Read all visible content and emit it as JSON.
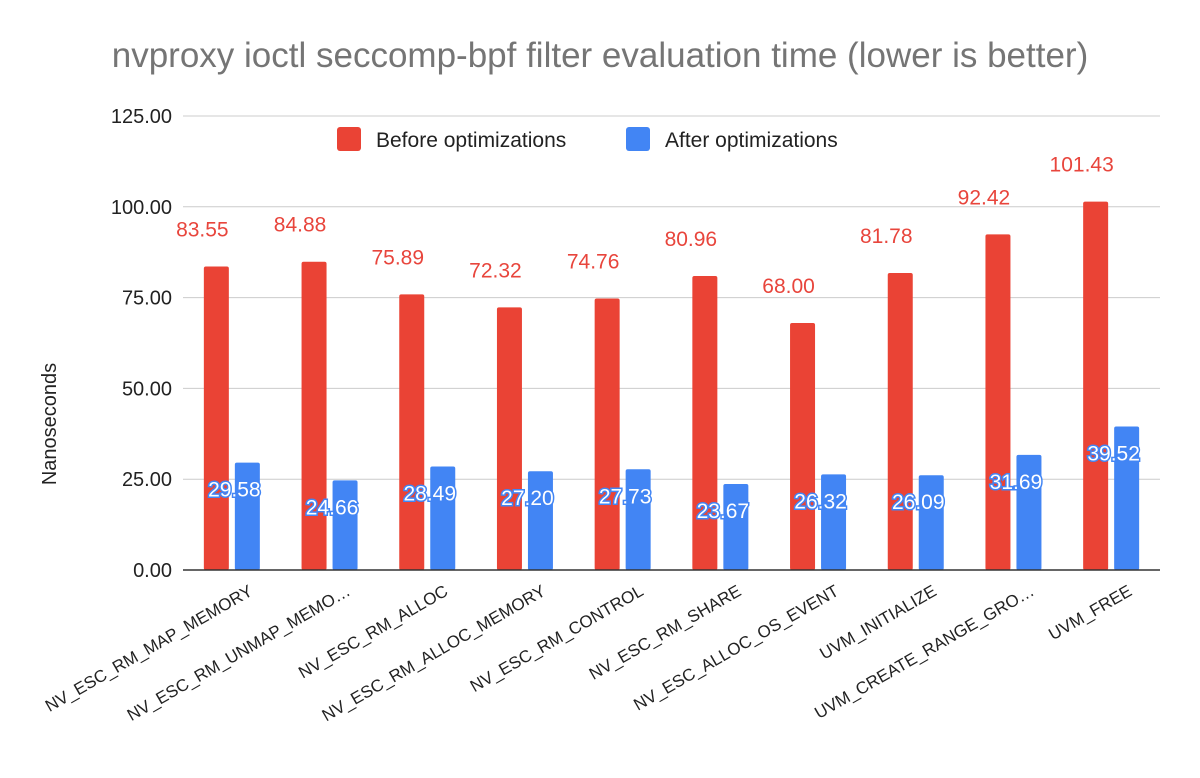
{
  "chart_data": {
    "type": "bar",
    "title": "nvproxy ioctl seccomp-bpf filter evaluation time (lower is better)",
    "ylabel": "Nanoseconds",
    "xlabel": "",
    "ylim": [
      0,
      125
    ],
    "yticks": [
      "0.00",
      "25.00",
      "50.00",
      "75.00",
      "100.00",
      "125.00"
    ],
    "grid": true,
    "legend_position": "top",
    "categories": [
      "NV_ESC_RM_MAP_MEMORY",
      "NV_ESC_RM_UNMAP_MEMO…",
      "NV_ESC_RM_ALLOC",
      "NV_ESC_RM_ALLOC_MEMORY",
      "NV_ESC_RM_CONTROL",
      "NV_ESC_RM_SHARE",
      "NV_ESC_ALLOC_OS_EVENT",
      "UVM_INITIALIZE",
      "UVM_CREATE_RANGE_GRO…",
      "UVM_FREE"
    ],
    "series": [
      {
        "name": "Before optimizations",
        "color": "#ea4335",
        "values": [
          83.55,
          84.88,
          75.89,
          72.32,
          74.76,
          80.96,
          68.0,
          81.78,
          92.42,
          101.43
        ],
        "labels": [
          "83.55",
          "84.88",
          "75.89",
          "72.32",
          "74.76",
          "80.96",
          "68.00",
          "81.78",
          "92.42",
          "101.43"
        ]
      },
      {
        "name": "After optimizations",
        "color": "#4285f4",
        "values": [
          29.58,
          24.66,
          28.49,
          27.2,
          27.73,
          23.67,
          26.32,
          26.09,
          31.69,
          39.52
        ],
        "labels": [
          "29.58",
          "24.66",
          "28.49",
          "27.20",
          "27.73",
          "23.67",
          "26.32",
          "26.09",
          "31.69",
          "39.52"
        ]
      }
    ]
  }
}
